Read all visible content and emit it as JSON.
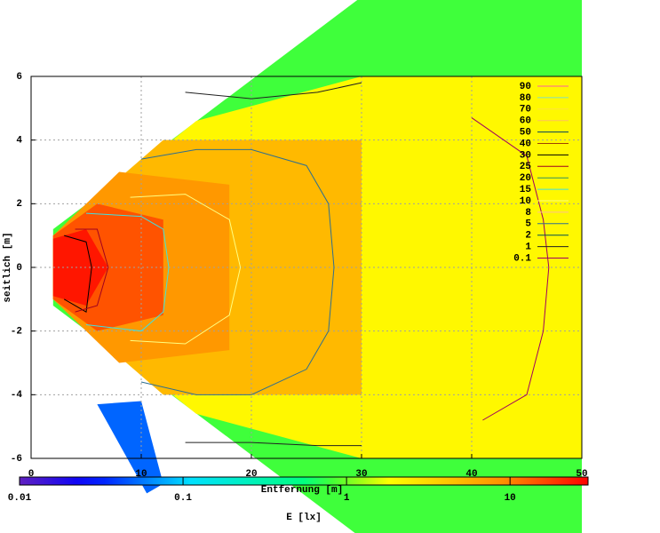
{
  "chart_data": {
    "type": "contour",
    "xlabel": "Entfernung [m]",
    "ylabel": "seitlich [m]",
    "xlim": [
      0,
      50
    ],
    "ylim": [
      -6,
      6
    ],
    "xticks": [
      0,
      10,
      20,
      30,
      40,
      50
    ],
    "yticks": [
      -6,
      -4,
      -2,
      0,
      2,
      4,
      6
    ],
    "grid": true,
    "legend": "upper right",
    "zones": [
      {
        "value": 0.8,
        "x": [
          2,
          30,
          50,
          50,
          30,
          2
        ],
        "y": [
          1.2,
          8.5,
          8.5,
          -8.5,
          -8.5,
          -1.2
        ]
      },
      {
        "value": 0.05,
        "x": [
          6,
          10,
          12,
          10.5
        ],
        "y": [
          -4.3,
          -4.2,
          -6.8,
          -7.1
        ]
      },
      {
        "value": 2,
        "x": [
          2,
          15,
          30,
          50,
          50,
          30,
          15,
          2
        ],
        "y": [
          1,
          4.6,
          6,
          6,
          -6,
          -6,
          -4.6,
          -1
        ]
      },
      {
        "value": 5,
        "x": [
          2,
          12,
          30,
          30,
          12,
          2
        ],
        "y": [
          1,
          4,
          4,
          -4,
          -4,
          -1
        ]
      },
      {
        "value": 8,
        "x": [
          2,
          8,
          18,
          18,
          8,
          2
        ],
        "y": [
          1,
          3,
          2.6,
          -2.6,
          -3,
          -1
        ]
      },
      {
        "value": 15,
        "x": [
          2,
          6,
          12,
          12,
          6,
          2
        ],
        "y": [
          1,
          2,
          1.5,
          -1.5,
          -2,
          -1
        ]
      },
      {
        "value": 25,
        "x": [
          2,
          5,
          7,
          5,
          2
        ],
        "y": [
          0.9,
          1.2,
          0,
          -1.2,
          -0.9
        ]
      }
    ],
    "series": [
      {
        "name": "90",
        "color": "#ff60a0"
      },
      {
        "name": "80",
        "color": "#80e0c0"
      },
      {
        "name": "70",
        "color": "#ffe040"
      },
      {
        "name": "60",
        "color": "#ffc060"
      },
      {
        "name": "50",
        "color": "#004060"
      },
      {
        "name": "40",
        "color": "#a04000"
      },
      {
        "name": "30",
        "color": "#000000",
        "x": [
          3,
          5,
          5.5,
          5,
          3
        ],
        "y": [
          1,
          0.8,
          0,
          -1.4,
          -1
        ]
      },
      {
        "name": "25",
        "color": "#a00020",
        "x": [
          4,
          6,
          7,
          6,
          4
        ],
        "y": [
          1.2,
          1.2,
          0,
          -1.2,
          -1.4
        ]
      },
      {
        "name": "20",
        "color": "#309060"
      },
      {
        "name": "15",
        "color": "#40e0e0",
        "x": [
          5,
          10,
          12,
          12.5,
          12,
          10,
          5
        ],
        "y": [
          1.7,
          1.6,
          1.2,
          0,
          -1.4,
          -2,
          -1.8
        ]
      },
      {
        "name": "10",
        "color": "#ffff80",
        "x": [
          9,
          14,
          18,
          19,
          18,
          14,
          9
        ],
        "y": [
          2.2,
          2.3,
          1.5,
          0,
          -1.5,
          -2.4,
          -2.3
        ]
      },
      {
        "name": "8",
        "color": "#ffc090"
      },
      {
        "name": "5",
        "color": "#2f6f8f",
        "x": [
          10,
          15,
          20,
          25,
          27,
          27.5,
          27,
          25,
          20,
          15,
          10
        ],
        "y": [
          3.4,
          3.7,
          3.7,
          3.2,
          2,
          0,
          -2,
          -3.2,
          -4,
          -4,
          -3.6
        ]
      },
      {
        "name": "2",
        "color": "#005050"
      },
      {
        "name": "1",
        "color": "#202020",
        "x": [
          14,
          20,
          26,
          30,
          null,
          14,
          20,
          26,
          30
        ],
        "y": [
          5.5,
          5.3,
          5.5,
          5.8,
          null,
          -5.5,
          -5.5,
          -5.6,
          -5.6
        ]
      },
      {
        "name": "0.1",
        "color": "#a00060",
        "x": [
          40,
          45,
          46.5,
          47,
          46.5,
          45,
          41
        ],
        "y": [
          4.7,
          3.5,
          1.5,
          0,
          -2,
          -4,
          -4.8
        ]
      }
    ],
    "cblabel": "E [lx]",
    "cblim": [
      0.01,
      30
    ],
    "cbticks": [
      0.01,
      0.1,
      1,
      10
    ],
    "cblog": true
  }
}
